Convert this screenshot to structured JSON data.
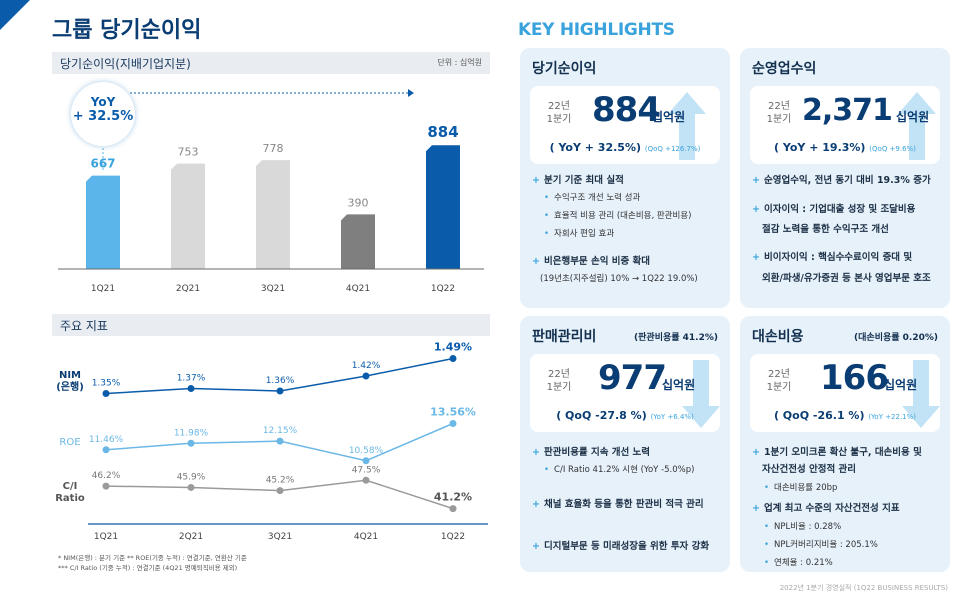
{
  "page_title": "그룹 당기순이익",
  "net_income_section": {
    "title": "당기순이익(지배기업지분)",
    "unit": "단위 : 십억원"
  },
  "yoy_bubble": {
    "line1": "YoY",
    "line2": "+ 32.5%"
  },
  "chart_data": [
    {
      "type": "bar",
      "categories": [
        "1Q21",
        "2Q21",
        "3Q21",
        "4Q21",
        "1Q22"
      ],
      "values": [
        667,
        753,
        778,
        390,
        884
      ],
      "value_labels": [
        "667",
        "753",
        "778",
        "390",
        "884"
      ],
      "ylim": [
        0,
        1000
      ],
      "colors": [
        "#5bb4ea",
        "#d9d9d9",
        "#d9d9d9",
        "#7f7f7f",
        "#0a5cab"
      ],
      "title": "",
      "xlabel": "",
      "ylabel": "",
      "grid": false
    },
    {
      "type": "line",
      "categories": [
        "1Q21",
        "2Q21",
        "3Q21",
        "4Q21",
        "1Q22"
      ],
      "series": [
        {
          "name": "NIM (은행)",
          "values": [
            1.35,
            1.37,
            1.36,
            1.42,
            1.49
          ],
          "labels": [
            "1.35%",
            "1.37%",
            "1.36%",
            "1.42%",
            "1.49%"
          ],
          "color": "#0a5cab"
        },
        {
          "name": "ROE",
          "values": [
            11.46,
            11.98,
            12.15,
            10.58,
            13.56
          ],
          "labels": [
            "11.46%",
            "11.98%",
            "12.15%",
            "10.58%",
            "13.56%"
          ],
          "color": "#6bb8e6"
        },
        {
          "name": "C/I Ratio",
          "values": [
            46.2,
            45.9,
            45.2,
            47.5,
            41.2
          ],
          "labels": [
            "46.2%",
            "45.9%",
            "45.2%",
            "47.5%",
            "41.2%"
          ],
          "color": "#9a9a9a"
        }
      ],
      "title": "",
      "xlabel": "",
      "ylabel": "",
      "grid": false
    }
  ],
  "key_index_section": {
    "title": "주요 지표"
  },
  "line_labels": {
    "nim1": "NIM",
    "nim2": "(은행)",
    "roe": "ROE",
    "ci1": "C/I",
    "ci2": "Ratio"
  },
  "footnotes": {
    "line1": "* NIM(은행) : 분기 기준     ** ROE(기중 누적) : 연결기준, 연환산 기준",
    "line2": "*** C/I Ratio (기중 누적) : 연결기준 (4Q21 명예퇴직비용 제외)"
  },
  "key_highlights_title": "KEY HIGHLIGHTS",
  "cards": {
    "net_income": {
      "title": "당기순이익",
      "period1": "22년",
      "period2": "1분기",
      "value": "884",
      "unit": "십억원",
      "yoy": "( YoY + 32.5%)",
      "qoq": "(QoQ +126.7%)",
      "bullets": [
        {
          "text": "분기 기준 최대 실적",
          "subs": [
            "수익구조 개선 노력 성과",
            "효율적 비용 관리 (대손비용, 판관비용)",
            "자회사 편입 효과"
          ]
        },
        {
          "text": "비은행부문 손익 비중 확대",
          "subs": [
            "(19년초(지주설립) 10% → 1Q22 19.0%)"
          ]
        }
      ]
    },
    "op_revenue": {
      "title": "순영업수익",
      "period1": "22년",
      "period2": "1분기",
      "value": "2,371",
      "unit": "십억원",
      "yoy": "( YoY + 19.3%)",
      "qoq": "(QoQ +9.6%)",
      "bullets": [
        "순영업수익, 전년 동기 대비 19.3% 증가",
        "이자이익 : 기업대출 성장 및 조달비용",
        "절감 노력을 통한 수익구조 개선",
        "비이자이익 : 핵심수수료이익 증대 및",
        "외환/파생/유가증권 등 본사 영업부문 호조"
      ]
    },
    "sga": {
      "title": "판매관리비",
      "subtitle": "(판관비용률 41.2%)",
      "period1": "22년",
      "period2": "1분기",
      "value": "977",
      "unit": "십억원",
      "yoy": "( QoQ -27.8 %)",
      "qoq": "(YoY +6.4%)",
      "bullets": [
        "판관비용률 지속 개선 노력",
        "C/I Ratio 41.2% 시현 (YoY -5.0%p)",
        "채널 효율화 등을 통한 판관비 적극 관리",
        "디지털부문 등 미래성장을 위한 투자 강화"
      ]
    },
    "credit_cost": {
      "title": "대손비용",
      "subtitle": "(대손비용률 0.20%)",
      "period1": "22년",
      "period2": "1분기",
      "value": "166",
      "unit": "십억원",
      "yoy": "( QoQ -26.1 %)",
      "qoq": "(YoY +22.1%)",
      "bullets": [
        "1분기 오미크론 확산 불구, 대손비용 및",
        "자산건전성 안정적 관리",
        "대손비용률 20bp",
        "업계 최고 수준의 자산건전성 지표",
        "NPL비율 : 0.28%",
        "NPL커버리지비율 : 205.1%",
        "연체율 : 0.21%"
      ]
    }
  },
  "footer": "2022년 1분기 경영실적 (1Q22 BUSINESS RESULTS)"
}
